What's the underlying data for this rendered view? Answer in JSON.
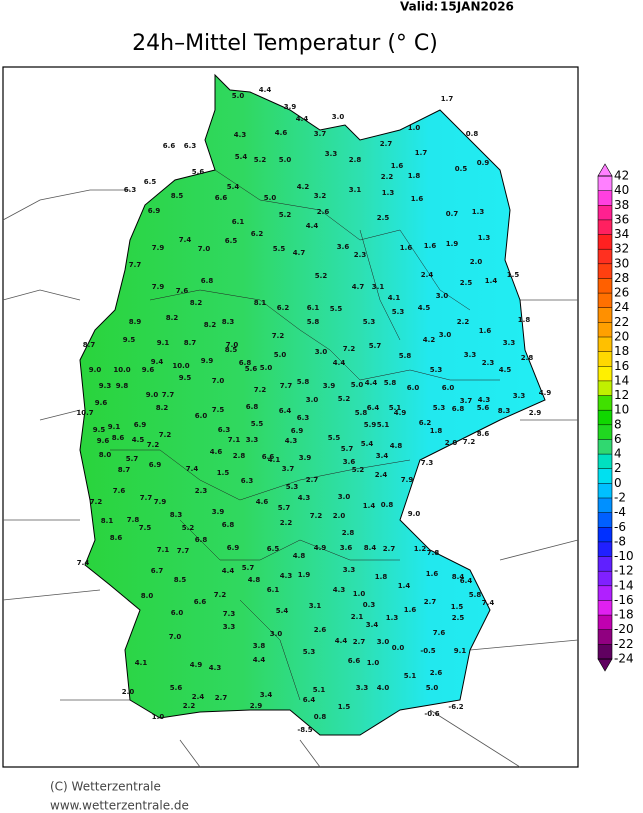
{
  "header": {
    "valid_label": "Valid:",
    "valid_date": "15JAN2026",
    "title": "24h–Mittel Temperatur (° C)"
  },
  "footer": {
    "copyright": "(C) Wetterzentrale",
    "url": "www.wetterzentrale.de"
  },
  "colorbar": {
    "ticks": [
      42,
      40,
      38,
      36,
      34,
      32,
      30,
      28,
      26,
      24,
      22,
      20,
      18,
      16,
      14,
      12,
      10,
      8,
      6,
      4,
      2,
      0,
      -2,
      -4,
      -6,
      -8,
      -10,
      -12,
      -14,
      -16,
      -18,
      -20,
      -22,
      -24
    ],
    "colors": [
      "#ff80ff",
      "#ff40e0",
      "#ff2090",
      "#ff2060",
      "#ff2020",
      "#ff3020",
      "#ff4010",
      "#ff6000",
      "#ff7000",
      "#ff9000",
      "#ffa000",
      "#ffc000",
      "#ffd800",
      "#fff000",
      "#c0f000",
      "#40e000",
      "#10d800",
      "#20d820",
      "#30d870",
      "#00e0c0",
      "#00e0f0",
      "#00c0ff",
      "#0090ff",
      "#0060ff",
      "#0030ff",
      "#2020ff",
      "#6020ff",
      "#8020ff",
      "#b020ff",
      "#e020f0",
      "#c000b0",
      "#900080",
      "#600060"
    ]
  },
  "map": {
    "stations": [
      "5.0",
      "4.4",
      "3.9",
      "4.4",
      "3.0",
      "4.3",
      "4.6",
      "3.7",
      "1.7",
      "1.0",
      "0.8",
      "6.6",
      "6.3",
      "5.6",
      "6.5",
      "6.3",
      "5.4",
      "5.2",
      "5.0",
      "3.3",
      "2.8",
      "2.7",
      "1.7",
      "1.6",
      "2.2",
      "1.8",
      "0.5",
      "0.9",
      "3.1",
      "1.3",
      "1.6",
      "5.4",
      "5.0",
      "4.2",
      "3.2",
      "2.6",
      "6.9",
      "8.5",
      "6.6",
      "6.1",
      "5.2",
      "2.5",
      "0.7",
      "1.3",
      "7.9",
      "7.4",
      "7.0",
      "6.5",
      "6.2",
      "4.4",
      "5.5",
      "4.7",
      "3.6",
      "2.3",
      "1.6",
      "1.6",
      "1.9",
      "1.3",
      "2.0",
      "1.5",
      "2.4",
      "2.5",
      "1.4",
      "3.0",
      "5.2",
      "4.7",
      "3.1",
      "4.1",
      "5.3",
      "7.7",
      "7.9",
      "7.6",
      "6.8",
      "8.2",
      "8.1",
      "6.2",
      "6.1",
      "5.5",
      "5.3",
      "4.5",
      "2.2",
      "1.6",
      "1.8",
      "8.9",
      "8.2",
      "8.2",
      "8.3",
      "7.2",
      "7.0",
      "8.5",
      "5.8",
      "9.5",
      "9.1",
      "8.7",
      "5.0",
      "3.0",
      "7.2",
      "5.7",
      "5.8",
      "4.2",
      "3.0",
      "3.3",
      "2.3",
      "3.3",
      "2.8",
      "8.7",
      "9.0",
      "10.0",
      "9.6",
      "10.0",
      "9.9",
      "6.8",
      "5.0",
      "4.4",
      "6.0",
      "5.3",
      "6.0",
      "4.5",
      "9.3",
      "9.8",
      "9.4",
      "9.5",
      "3.9",
      "5.0",
      "4.4",
      "5.8",
      "4.9",
      "10.7",
      "9.6",
      "9.0",
      "7.7",
      "7.0",
      "7.2",
      "7.7",
      "5.6",
      "5.8",
      "5.2",
      "3.0",
      "5.1",
      "5.3",
      "6.8",
      "3.7",
      "4.3",
      "5.6",
      "3.3",
      "2.9",
      "8.3",
      "9.5",
      "9.1",
      "6.9",
      "8.2",
      "7.2",
      "7.5",
      "6.8",
      "6.4",
      "5.8",
      "6.4",
      "4.9",
      "5.9",
      "5.1",
      "6.2",
      "1.8",
      "8.6",
      "9.6",
      "8.6",
      "4.5",
      "6.0",
      "6.3",
      "5.5",
      "6.9",
      "7.1",
      "3.3",
      "4.3",
      "6.3",
      "5.5",
      "5.7",
      "5.4",
      "4.8",
      "2.0",
      "7.2",
      "8.0",
      "5.7",
      "7.2",
      "4.6",
      "6.6",
      "2.8",
      "7.3",
      "8.7",
      "6.9",
      "7.4",
      "1.5",
      "4.1",
      "3.7",
      "3.9",
      "2.7",
      "3.6",
      "5.2",
      "3.4",
      "2.4",
      "7.9",
      "7.2",
      "7.6",
      "7.7",
      "7.9",
      "6.3",
      "2.3",
      "5.3",
      "3.0",
      "1.4",
      "0.8",
      "9.0",
      "8.1",
      "7.8",
      "7.5",
      "8.3",
      "3.9",
      "4.6",
      "5.7",
      "4.3",
      "2.0",
      "7.2",
      "5.2",
      "6.8",
      "2.2",
      "2.7",
      "1.2",
      "7.8",
      "7.4",
      "8.6",
      "7.1",
      "7.7",
      "6.8",
      "6.9",
      "6.5",
      "4.8",
      "2.8",
      "4.9",
      "3.6",
      "8.4",
      "6.7",
      "4.4",
      "5.7",
      "4.3",
      "3.3",
      "1.8",
      "1.6",
      "8.4",
      "8.5",
      "4.8",
      "1.9",
      "1.4",
      "6.4",
      "8.0",
      "7.2",
      "6.1",
      "4.3",
      "1.0",
      "2.7",
      "7.4",
      "6.0",
      "6.6",
      "7.3",
      "5.4",
      "3.1",
      "0.3",
      "1.6",
      "1.5",
      "5.8",
      "7.0",
      "3.3",
      "3.0",
      "2.6",
      "2.1",
      "3.4",
      "1.3",
      "2.5",
      "7.6",
      "4.1",
      "4.9",
      "3.8",
      "5.3",
      "4.4",
      "2.7",
      "3.0",
      "0.0",
      "-0.5",
      "9.1",
      "2.0",
      "5.6",
      "4.3",
      "4.4",
      "6.6",
      "1.0",
      "2.6",
      "5.1",
      "2.2",
      "2.4",
      "2.7",
      "3.4",
      "6.4",
      "5.1",
      "3.3",
      "4.0",
      "5.0",
      "2.9",
      "1.5",
      "-0.6",
      "-6.2",
      "1.0",
      "0.8",
      "-8.5"
    ]
  }
}
